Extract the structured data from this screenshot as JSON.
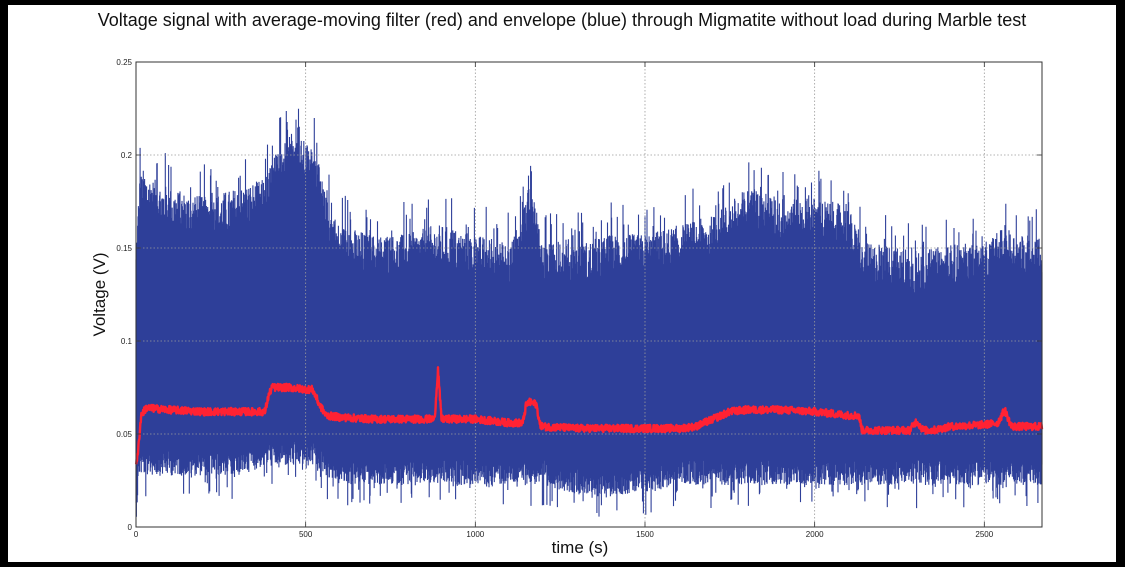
{
  "chart_data": {
    "type": "line",
    "title": "Voltage signal with average-moving filter (red) and envelope (blue) through Migmatite without load during Marble test",
    "xlabel": "time (s)",
    "ylabel": "Voltage (V)",
    "xlim": [
      0,
      2670
    ],
    "ylim": [
      0,
      0.25
    ],
    "xticks": [
      0,
      500,
      1000,
      1500,
      2000,
      2500
    ],
    "yticks": [
      0,
      0.05,
      0.1,
      0.15,
      0.2,
      0.25
    ],
    "xtick_labels": [
      "0",
      "500",
      "1000",
      "1500",
      "2000",
      "2500"
    ],
    "ytick_labels": [
      "0",
      "0.05",
      "0.1",
      "0.15",
      "0.2",
      "0.25"
    ],
    "grid": true,
    "colors": {
      "envelope": "#2e3f99",
      "filter": "#ff2233",
      "grid": "#9a9a9a"
    },
    "series": [
      {
        "x": [
          0,
          10,
          20,
          50,
          100,
          200,
          300,
          380,
          400,
          450,
          500,
          530,
          560,
          600,
          700,
          800,
          880,
          900,
          1000,
          1100,
          1140,
          1160,
          1180,
          1200,
          1300,
          1400,
          1500,
          1600,
          1700,
          1800,
          1900,
          2000,
          2100,
          2140,
          2200,
          2300,
          2400,
          2500,
          2560,
          2600,
          2670
        ],
        "upper": [
          0.14,
          0.175,
          0.18,
          0.175,
          0.17,
          0.165,
          0.17,
          0.175,
          0.185,
          0.2,
          0.195,
          0.19,
          0.165,
          0.15,
          0.145,
          0.145,
          0.15,
          0.15,
          0.145,
          0.14,
          0.155,
          0.175,
          0.16,
          0.14,
          0.14,
          0.145,
          0.145,
          0.15,
          0.155,
          0.17,
          0.165,
          0.165,
          0.16,
          0.14,
          0.14,
          0.135,
          0.14,
          0.14,
          0.15,
          0.145,
          0.145
        ],
        "lower": [
          0.01,
          0.035,
          0.035,
          0.035,
          0.035,
          0.035,
          0.035,
          0.04,
          0.04,
          0.04,
          0.04,
          0.04,
          0.035,
          0.03,
          0.03,
          0.03,
          0.03,
          0.03,
          0.03,
          0.03,
          0.03,
          0.03,
          0.03,
          0.03,
          0.025,
          0.025,
          0.025,
          0.03,
          0.03,
          0.03,
          0.03,
          0.03,
          0.03,
          0.03,
          0.03,
          0.03,
          0.03,
          0.03,
          0.03,
          0.03,
          0.03
        ]
      },
      {
        "x": [
          0,
          5,
          15,
          30,
          100,
          200,
          300,
          380,
          390,
          400,
          450,
          500,
          520,
          540,
          560,
          600,
          700,
          800,
          850,
          880,
          890,
          900,
          950,
          1000,
          1050,
          1100,
          1140,
          1150,
          1160,
          1180,
          1190,
          1200,
          1300,
          1400,
          1500,
          1600,
          1650,
          1700,
          1750,
          1800,
          1900,
          2000,
          2100,
          2130,
          2140,
          2150,
          2200,
          2280,
          2300,
          2320,
          2350,
          2400,
          2500,
          2540,
          2560,
          2580,
          2600,
          2670
        ],
        "values": [
          0.035,
          0.038,
          0.06,
          0.064,
          0.063,
          0.062,
          0.062,
          0.062,
          0.07,
          0.075,
          0.075,
          0.074,
          0.074,
          0.066,
          0.06,
          0.059,
          0.058,
          0.058,
          0.058,
          0.058,
          0.085,
          0.058,
          0.058,
          0.058,
          0.057,
          0.056,
          0.056,
          0.066,
          0.067,
          0.066,
          0.055,
          0.054,
          0.053,
          0.053,
          0.053,
          0.053,
          0.054,
          0.058,
          0.062,
          0.063,
          0.063,
          0.062,
          0.06,
          0.06,
          0.052,
          0.052,
          0.052,
          0.052,
          0.057,
          0.052,
          0.052,
          0.054,
          0.055,
          0.056,
          0.063,
          0.054,
          0.054,
          0.054
        ]
      }
    ]
  }
}
